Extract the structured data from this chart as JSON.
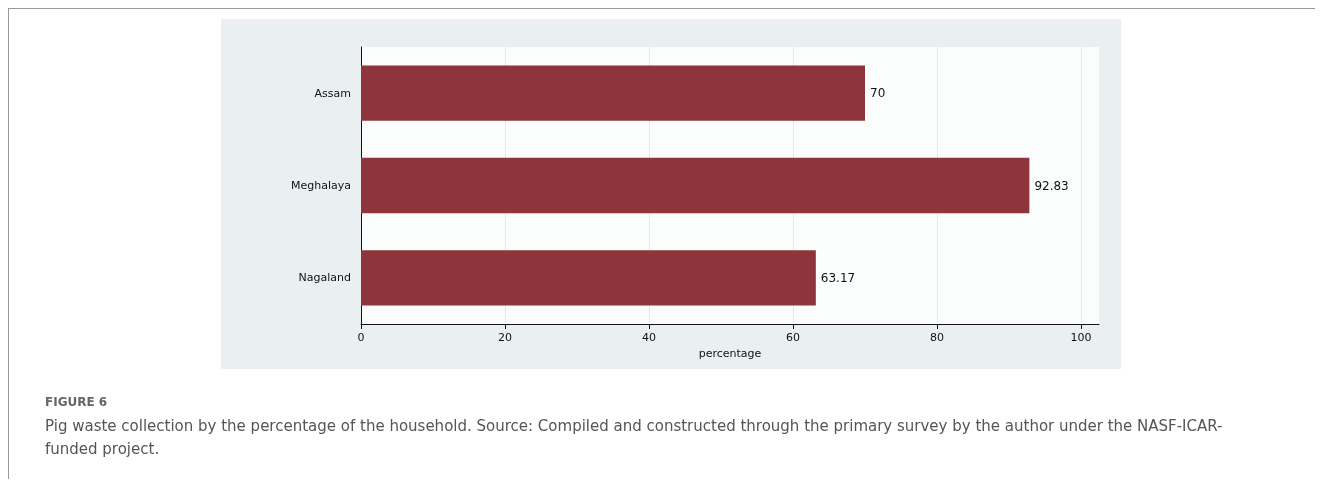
{
  "chart_data": {
    "type": "bar",
    "orientation": "horizontal",
    "title": "FIGURE 6",
    "subtitle": "Pig waste collection by the percentage of the household. Source: Compiled and constructed through the primary survey by the author under the NASF-ICAR-funded project.",
    "xlabel": "percentage",
    "categories": [
      "Assam",
      "Meghalaya",
      "Nagaland"
    ],
    "values": [
      70,
      92.83,
      63.17
    ],
    "color": "#8e343b",
    "xlim": [
      0,
      102.5
    ],
    "xticks": [
      0,
      20,
      40,
      60,
      80,
      100
    ],
    "grid": "x",
    "data_labels": true
  }
}
